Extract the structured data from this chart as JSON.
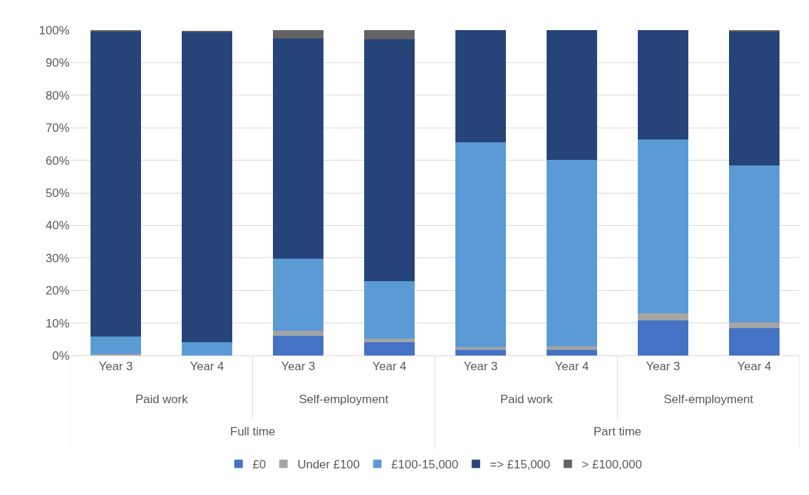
{
  "chart_data": {
    "type": "bar",
    "stacked": true,
    "categories": [
      "Year 3",
      "Year 4",
      "Year 3",
      "Year 4",
      "Year 3",
      "Year 4",
      "Year 3",
      "Year 4"
    ],
    "series": [
      {
        "name": "£0",
        "color": "#4472c4",
        "values": [
          0,
          0,
          6.1,
          4.2,
          1.8,
          1.8,
          10.8,
          8.5
        ]
      },
      {
        "name": "Under £100",
        "color": "#a5a5a5",
        "values": [
          0.5,
          0,
          1.5,
          1.0,
          0.8,
          1.1,
          2.2,
          1.6
        ]
      },
      {
        "name": "£100-15,000",
        "color": "#5b9bd5",
        "values": [
          5.4,
          4.1,
          22.1,
          17.6,
          62.9,
          57.3,
          53.4,
          48.2
        ]
      },
      {
        "name": "=> £15,000",
        "color": "#264478",
        "values": [
          93.8,
          95.4,
          67.8,
          74.4,
          34.5,
          39.8,
          33.6,
          41.4
        ]
      },
      {
        "name": "> £100,000",
        "color": "#636363",
        "values": [
          0.3,
          0.3,
          2.5,
          2.8,
          0,
          0,
          0,
          0.3
        ]
      }
    ],
    "ylim": [
      0,
      100
    ],
    "yticks": [
      {
        "value": 0,
        "label": "0%"
      },
      {
        "value": 10,
        "label": "10%"
      },
      {
        "value": 20,
        "label": "20%"
      },
      {
        "value": 30,
        "label": "30%"
      },
      {
        "value": 40,
        "label": "40%"
      },
      {
        "value": 50,
        "label": "50%"
      },
      {
        "value": 60,
        "label": "60%"
      },
      {
        "value": 70,
        "label": "70%"
      },
      {
        "value": 80,
        "label": "80%"
      },
      {
        "value": 90,
        "label": "90%"
      },
      {
        "value": 100,
        "label": "100%"
      }
    ],
    "annotations": [
      "Paid work",
      "Self-employment",
      "Paid work",
      "Self-employment",
      "Full time",
      "Part time"
    ],
    "grid": "y",
    "legend": "bottom"
  }
}
